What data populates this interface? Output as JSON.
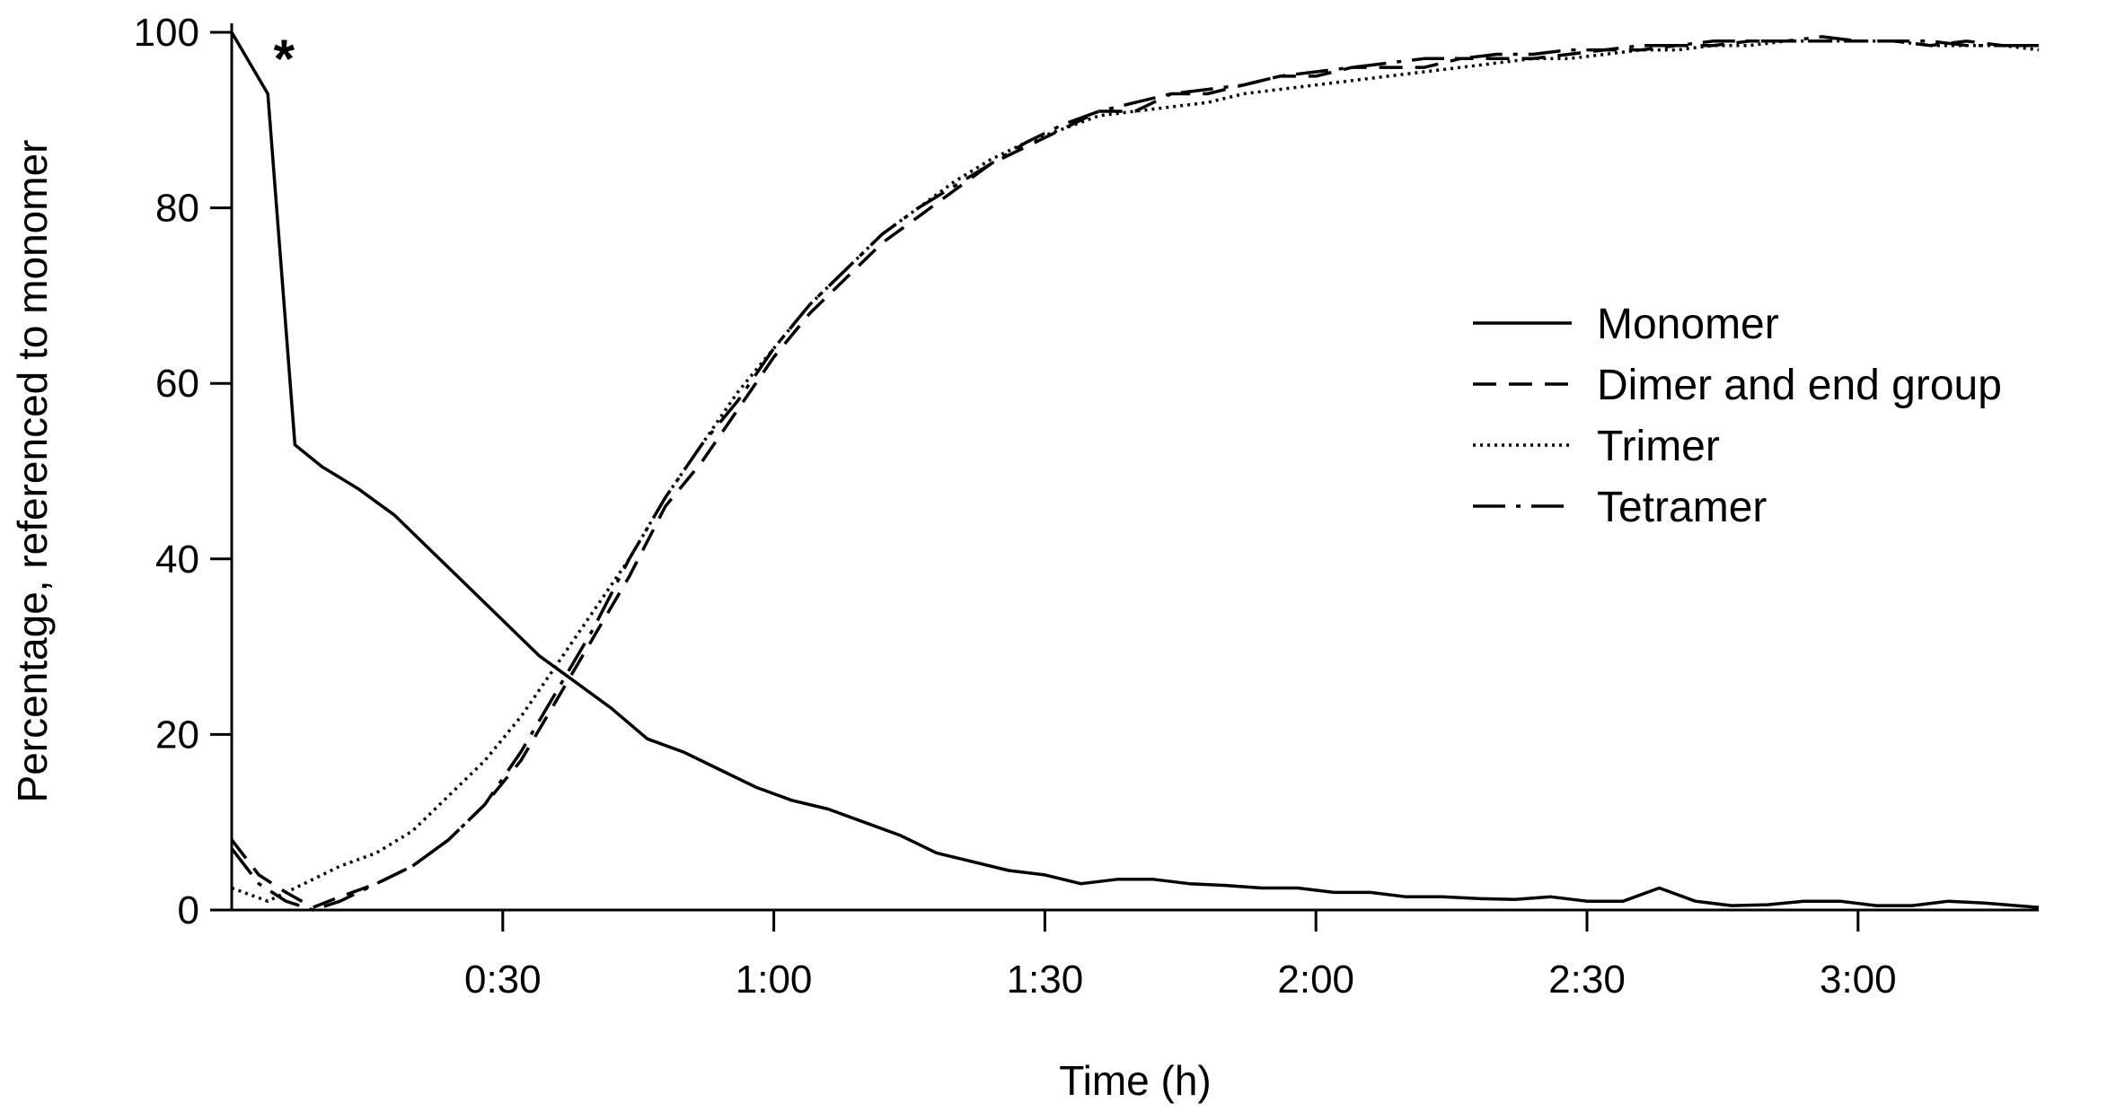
{
  "chart_data": {
    "type": "line",
    "title": "",
    "xlabel": "Time (h)",
    "ylabel": "Percentage, referenced to monomer",
    "xlim": [
      0,
      200
    ],
    "ylim": [
      0,
      100
    ],
    "xticks": [
      30,
      60,
      90,
      120,
      150,
      180
    ],
    "xtick_labels": [
      "0:30",
      "1:00",
      "1:30",
      "2:00",
      "2:30",
      "3:00"
    ],
    "yticks": [
      0,
      20,
      40,
      60,
      80,
      100
    ],
    "ytick_labels": [
      "0",
      "20",
      "40",
      "60",
      "80",
      "100"
    ],
    "grid": false,
    "legend_position": "right-middle",
    "annotation": {
      "text": "*",
      "x": 5,
      "y": 99
    },
    "series": [
      {
        "name": "Monomer",
        "style": "solid",
        "points": [
          [
            0,
            100
          ],
          [
            4,
            93
          ],
          [
            7,
            53
          ],
          [
            10,
            50.5
          ],
          [
            14,
            48
          ],
          [
            18,
            45
          ],
          [
            22,
            41
          ],
          [
            26,
            37
          ],
          [
            30,
            33
          ],
          [
            34,
            29
          ],
          [
            38,
            26
          ],
          [
            42,
            23
          ],
          [
            46,
            19.5
          ],
          [
            50,
            18
          ],
          [
            54,
            16
          ],
          [
            58,
            14
          ],
          [
            62,
            12.5
          ],
          [
            66,
            11.5
          ],
          [
            70,
            10
          ],
          [
            74,
            8.5
          ],
          [
            78,
            6.5
          ],
          [
            82,
            5.5
          ],
          [
            86,
            4.5
          ],
          [
            90,
            4
          ],
          [
            94,
            3
          ],
          [
            98,
            3.5
          ],
          [
            102,
            3.5
          ],
          [
            106,
            3
          ],
          [
            110,
            2.8
          ],
          [
            114,
            2.5
          ],
          [
            118,
            2.5
          ],
          [
            122,
            2
          ],
          [
            126,
            2
          ],
          [
            130,
            1.5
          ],
          [
            134,
            1.5
          ],
          [
            138,
            1.3
          ],
          [
            142,
            1.2
          ],
          [
            146,
            1.5
          ],
          [
            150,
            1
          ],
          [
            154,
            1
          ],
          [
            158,
            2.5
          ],
          [
            162,
            1
          ],
          [
            166,
            0.5
          ],
          [
            170,
            0.6
          ],
          [
            174,
            1
          ],
          [
            178,
            1
          ],
          [
            182,
            0.5
          ],
          [
            186,
            0.5
          ],
          [
            190,
            1
          ],
          [
            194,
            0.8
          ],
          [
            200,
            0.3
          ]
        ]
      },
      {
        "name": "Dimer and end group",
        "style": "dashed",
        "points": [
          [
            0,
            8
          ],
          [
            3,
            4
          ],
          [
            6,
            2
          ],
          [
            9,
            0.3
          ],
          [
            12,
            1.5
          ],
          [
            16,
            3
          ],
          [
            20,
            5
          ],
          [
            24,
            8
          ],
          [
            28,
            12
          ],
          [
            32,
            17
          ],
          [
            36,
            24
          ],
          [
            40,
            31
          ],
          [
            44,
            38
          ],
          [
            48,
            46
          ],
          [
            52,
            51
          ],
          [
            56,
            57
          ],
          [
            60,
            63
          ],
          [
            64,
            68
          ],
          [
            68,
            72
          ],
          [
            72,
            76
          ],
          [
            76,
            79
          ],
          [
            80,
            82
          ],
          [
            84,
            85
          ],
          [
            88,
            87
          ],
          [
            92,
            89
          ],
          [
            96,
            91
          ],
          [
            100,
            91
          ],
          [
            104,
            93
          ],
          [
            108,
            93
          ],
          [
            112,
            94
          ],
          [
            116,
            95
          ],
          [
            120,
            95
          ],
          [
            124,
            96
          ],
          [
            128,
            96
          ],
          [
            132,
            96
          ],
          [
            136,
            97
          ],
          [
            140,
            97
          ],
          [
            144,
            97
          ],
          [
            148,
            97.5
          ],
          [
            152,
            98
          ],
          [
            156,
            98
          ],
          [
            160,
            98.5
          ],
          [
            164,
            98.5
          ],
          [
            168,
            99
          ],
          [
            172,
            99
          ],
          [
            176,
            99
          ],
          [
            180,
            99
          ],
          [
            184,
            99
          ],
          [
            188,
            98.5
          ],
          [
            192,
            99
          ],
          [
            196,
            98.5
          ],
          [
            200,
            98.5
          ]
        ]
      },
      {
        "name": "Trimer",
        "style": "dotted",
        "points": [
          [
            0,
            2.5
          ],
          [
            4,
            1
          ],
          [
            8,
            3
          ],
          [
            12,
            5
          ],
          [
            16,
            6.5
          ],
          [
            20,
            9
          ],
          [
            24,
            13
          ],
          [
            28,
            17
          ],
          [
            32,
            22
          ],
          [
            36,
            28
          ],
          [
            40,
            34
          ],
          [
            44,
            40
          ],
          [
            48,
            47
          ],
          [
            52,
            53
          ],
          [
            56,
            59
          ],
          [
            60,
            64
          ],
          [
            64,
            69
          ],
          [
            68,
            73
          ],
          [
            72,
            77
          ],
          [
            76,
            80
          ],
          [
            80,
            83
          ],
          [
            84,
            85.5
          ],
          [
            88,
            87.5
          ],
          [
            92,
            89
          ],
          [
            96,
            90.5
          ],
          [
            100,
            91
          ],
          [
            104,
            91.5
          ],
          [
            108,
            92
          ],
          [
            112,
            93
          ],
          [
            116,
            93.5
          ],
          [
            120,
            94
          ],
          [
            124,
            94.5
          ],
          [
            128,
            95
          ],
          [
            132,
            95.5
          ],
          [
            136,
            96
          ],
          [
            140,
            96.5
          ],
          [
            144,
            97
          ],
          [
            148,
            97
          ],
          [
            152,
            97.5
          ],
          [
            156,
            98
          ],
          [
            160,
            98
          ],
          [
            164,
            98.5
          ],
          [
            168,
            98.5
          ],
          [
            172,
            99
          ],
          [
            176,
            99
          ],
          [
            180,
            99
          ],
          [
            184,
            99
          ],
          [
            188,
            98.5
          ],
          [
            192,
            98.5
          ],
          [
            196,
            98.5
          ],
          [
            200,
            98
          ]
        ]
      },
      {
        "name": "Tetramer",
        "style": "dashdot",
        "points": [
          [
            0,
            7
          ],
          [
            3,
            3
          ],
          [
            6,
            1
          ],
          [
            9,
            0
          ],
          [
            12,
            1
          ],
          [
            16,
            3
          ],
          [
            20,
            5
          ],
          [
            24,
            8
          ],
          [
            28,
            12
          ],
          [
            32,
            18
          ],
          [
            36,
            25
          ],
          [
            40,
            32
          ],
          [
            44,
            40
          ],
          [
            48,
            47
          ],
          [
            52,
            53
          ],
          [
            56,
            58
          ],
          [
            60,
            64
          ],
          [
            64,
            69
          ],
          [
            68,
            73
          ],
          [
            72,
            77
          ],
          [
            76,
            80
          ],
          [
            80,
            82.5
          ],
          [
            84,
            85
          ],
          [
            88,
            87.5
          ],
          [
            92,
            89.5
          ],
          [
            96,
            91
          ],
          [
            100,
            92
          ],
          [
            104,
            93
          ],
          [
            108,
            93.5
          ],
          [
            112,
            94
          ],
          [
            116,
            95
          ],
          [
            120,
            95.5
          ],
          [
            124,
            96
          ],
          [
            128,
            96.5
          ],
          [
            132,
            97
          ],
          [
            136,
            97
          ],
          [
            140,
            97.5
          ],
          [
            144,
            97.5
          ],
          [
            148,
            98
          ],
          [
            152,
            98
          ],
          [
            156,
            98.5
          ],
          [
            160,
            98.5
          ],
          [
            164,
            99
          ],
          [
            168,
            99
          ],
          [
            172,
            99
          ],
          [
            176,
            99.5
          ],
          [
            180,
            99
          ],
          [
            184,
            99
          ],
          [
            188,
            99
          ],
          [
            192,
            98.5
          ],
          [
            196,
            98.5
          ],
          [
            200,
            98.5
          ]
        ]
      }
    ]
  }
}
